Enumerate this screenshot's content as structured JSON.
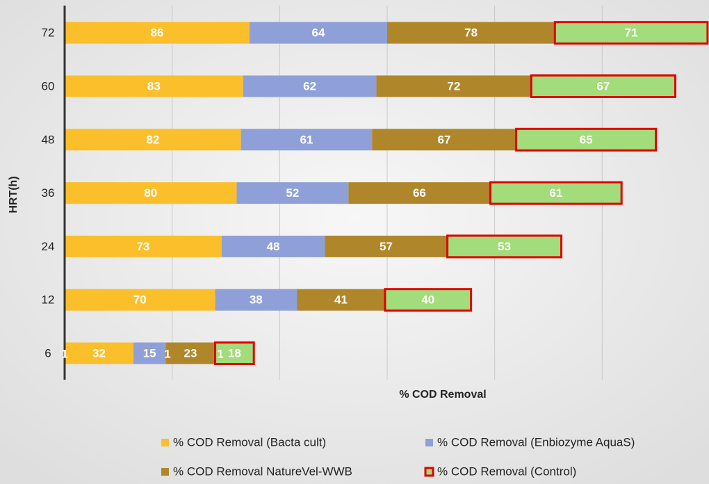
{
  "chart_data": {
    "type": "bar",
    "orientation": "horizontal",
    "stacked": true,
    "x_label": "% COD Removal",
    "y_label": "HRT(h)",
    "categories": [
      "6",
      "12",
      "24",
      "36",
      "48",
      "60",
      "72"
    ],
    "series": [
      {
        "name": "% COD Removal (Bacta cult)",
        "color": "#fbbf2c",
        "values": [
          32,
          70,
          73,
          80,
          82,
          83,
          86
        ]
      },
      {
        "name": "% COD Removal (Enbiozyme AquaS)",
        "color": "#8fa0d8",
        "values": [
          15,
          38,
          48,
          52,
          61,
          62,
          64
        ]
      },
      {
        "name": "% COD Removal NatureVel-WWB",
        "color": "#b0862a",
        "values": [
          23,
          41,
          57,
          66,
          67,
          72,
          78
        ]
      },
      {
        "name": "% COD Removal (Control)",
        "color": "#a3dc7a",
        "border": "#e00000",
        "values": [
          18,
          40,
          53,
          61,
          65,
          67,
          71
        ]
      }
    ],
    "annotations": [
      "1",
      "1",
      "1"
    ],
    "xlim": [
      0,
      300
    ],
    "xticks": [
      0,
      50,
      100,
      150,
      200,
      250
    ],
    "grid": true,
    "legend": "bottom"
  }
}
